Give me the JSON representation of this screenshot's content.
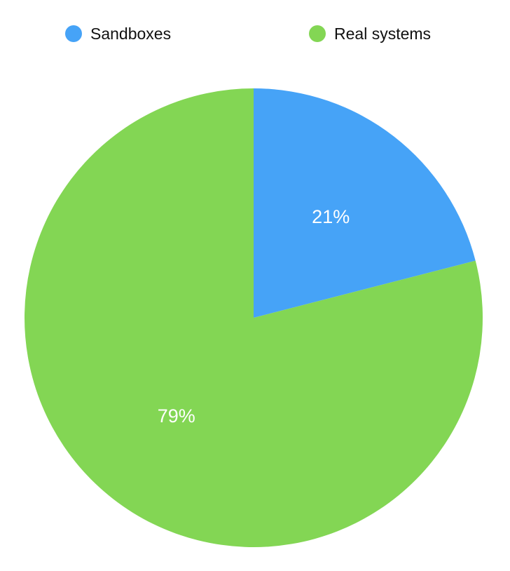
{
  "chart_data": {
    "type": "pie",
    "title": "",
    "legend_position": "top",
    "slices": [
      {
        "label": "Sandboxes",
        "value": 21,
        "display": "21%",
        "color": "#46A3F7"
      },
      {
        "label": "Real systems",
        "value": 79,
        "display": "79%",
        "color": "#83D654"
      }
    ]
  }
}
